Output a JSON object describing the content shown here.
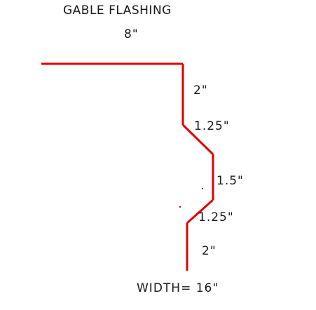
{
  "diagram": {
    "title": "GABLE FLASHING",
    "dimensions": {
      "top_leg": "8\"",
      "segment_1": "2\"",
      "segment_2": "1.25\"",
      "segment_3": "1.5\"",
      "segment_4": "1.25\"",
      "segment_5": "2\""
    },
    "width_label": "WIDTH= 16\""
  },
  "colors": {
    "profile_line": "#e00000",
    "text": "#1a1a1a",
    "background": "#ffffff"
  }
}
